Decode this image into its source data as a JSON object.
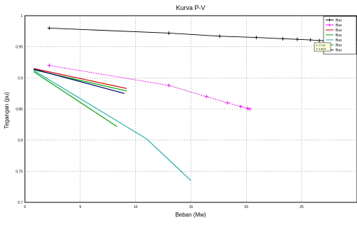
{
  "chart_data": {
    "type": "line",
    "title": "Kurva P-V",
    "xlabel": "Beban (Mw)",
    "ylabel": "Tegangan (pu)",
    "xlim": [
      0,
      30
    ],
    "ylim": [
      0.7,
      1.0
    ],
    "xticks": [
      "0",
      "5",
      "10",
      "15",
      "20",
      "25"
    ],
    "xtick_values": [
      0,
      5,
      10,
      15,
      20,
      25
    ],
    "yticks": [
      "0.7",
      "0.75",
      "0.8",
      "0.85",
      "0.9",
      "0.95",
      "1"
    ],
    "ytick_values": [
      0.7,
      0.75,
      0.8,
      0.85,
      0.9,
      0.95,
      1.0
    ],
    "grid": true,
    "legend_position": "top-right",
    "series": [
      {
        "name": "Bus",
        "color": "#000000",
        "marker": "+",
        "x": [
          2.2,
          13,
          17.6,
          20.9,
          23.3,
          24.6,
          25.8,
          26.6,
          27.4,
          28.0,
          28.6
        ],
        "y": [
          0.98,
          0.972,
          0.967,
          0.965,
          0.963,
          0.962,
          0.961,
          0.96,
          0.9595,
          0.959,
          0.959
        ]
      },
      {
        "name": "Bus",
        "color": "#ff00ff",
        "marker": "+",
        "x": [
          2.2,
          13,
          16.4,
          18.3,
          19.5,
          20.1,
          20.3
        ],
        "y": [
          0.92,
          0.888,
          0.87,
          0.86,
          0.854,
          0.851,
          0.85
        ]
      },
      {
        "name": "Bus",
        "color": "#cc0000",
        "marker": "none",
        "x": [
          0.8,
          9.2
        ],
        "y": [
          0.915,
          0.883
        ]
      },
      {
        "name": "Bus",
        "color": "#00aa00",
        "marker": "none",
        "x": [
          0.8,
          8.3
        ],
        "y": [
          0.91,
          0.822
        ]
      },
      {
        "name": "Bus",
        "color": "#20b2aa",
        "marker": "none",
        "x": [
          0.8,
          11.0,
          15.0
        ],
        "y": [
          0.912,
          0.802,
          0.735
        ]
      },
      {
        "name": "Bus",
        "color": "#00aa00",
        "marker": "none",
        "x": [
          0.8,
          9.2
        ],
        "y": [
          0.913,
          0.879
        ]
      },
      {
        "name": "Bus",
        "color": "#000080",
        "marker": "none",
        "x": [
          0.8,
          9.0
        ],
        "y": [
          0.914,
          0.875
        ]
      }
    ],
    "datatip": {
      "line1": "X: 27.43",
      "line2": "Y: 0.9611",
      "x": 27.43,
      "y": 0.9611
    },
    "colors": {
      "red_dashed": "#ff0000",
      "green_dashed": "#00aa00",
      "black_red_width": "#444444"
    }
  }
}
